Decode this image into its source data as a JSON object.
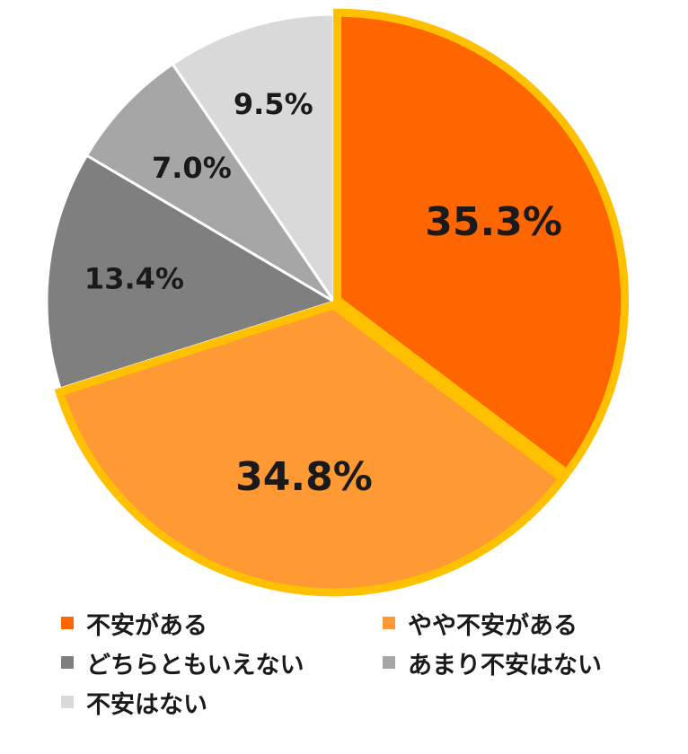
{
  "chart_data": {
    "type": "pie",
    "categories": [
      "不安がある",
      "やや不安がある",
      "どちらともいえない",
      "あまり不安はない",
      "不安はない"
    ],
    "values": [
      35.3,
      34.8,
      13.4,
      7.0,
      9.5
    ],
    "labels": [
      "35.3%",
      "34.8%",
      "13.4%",
      "7.0%",
      "9.5%"
    ],
    "colors": [
      "#ff6600",
      "#ff9933",
      "#7f7f7f",
      "#a6a6a6",
      "#d9d9d9"
    ],
    "highlight_color": "#ffc000",
    "highlighted": [
      0,
      1
    ],
    "start_angle_deg": 0,
    "direction": "clockwise",
    "legend_position": "bottom"
  },
  "legend": {
    "items": [
      {
        "label": "不安がある",
        "color": "#ff6600"
      },
      {
        "label": "やや不安がある",
        "color": "#ff9933"
      },
      {
        "label": "どちらともいえない",
        "color": "#7f7f7f"
      },
      {
        "label": "あまり不安はない",
        "color": "#a6a6a6"
      },
      {
        "label": "不安はない",
        "color": "#d9d9d9"
      }
    ]
  }
}
